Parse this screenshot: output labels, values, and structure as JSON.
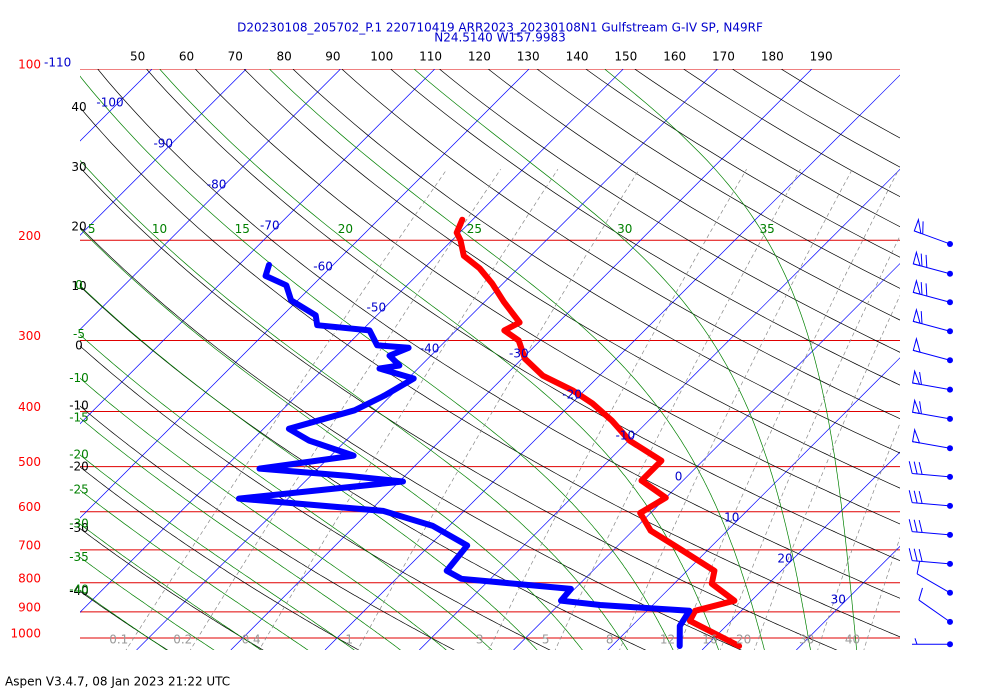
{
  "chart_data": {
    "type": "skewt",
    "title": "D20230108_205702_P.1 220710419 ARR2023_20230108N1 Gulfstream G-IV SP, N49RF",
    "subtitle": "N24.5140 W157.9983",
    "footer": "Aspen V3.4.7, 08 Jan 2023  21:22 UTC",
    "yscale": "log",
    "ylim": [
      1050,
      100
    ],
    "yticks": [
      100,
      200,
      300,
      400,
      500,
      600,
      700,
      800,
      900,
      1000
    ],
    "xlim": [
      -46,
      41
    ],
    "xticks": [
      -110,
      -100,
      -90,
      -80,
      -70,
      -60,
      -50,
      -40,
      -30,
      -20,
      -10,
      0,
      10,
      20,
      30
    ],
    "dry_adiabats_top": [
      50,
      60,
      70,
      80,
      90,
      100,
      110,
      120,
      130,
      140,
      150,
      160,
      170,
      180,
      190
    ],
    "dry_adiabats_left": [
      40,
      30,
      20,
      10,
      0,
      -10,
      -20,
      -30,
      -40
    ],
    "moist_adiabats_top": [
      5,
      10,
      15,
      20,
      25,
      30,
      35
    ],
    "moist_adiabats_left": [
      0,
      -5,
      -10,
      -15,
      -20,
      -25,
      -30,
      -35,
      -40
    ],
    "mixing_ratios": [
      0.1,
      0.2,
      0.4,
      1,
      3,
      5,
      8,
      12,
      16,
      20,
      30,
      40
    ],
    "series": [
      {
        "color": "#ff0000",
        "pressure": [
          184,
          194,
          200,
          213,
          224,
          238,
          257,
          279,
          288,
          300,
          323,
          346,
          367,
          387,
          415,
          450,
          488,
          529,
          567,
          603,
          648,
          697,
          762,
          803,
          860,
          896,
          933,
          1033
        ],
        "values": [
          -51.1,
          -50.3,
          -49.1,
          -47.1,
          -44.1,
          -41.2,
          -37.9,
          -34.1,
          -34.9,
          -32.3,
          -29.7,
          -26.0,
          -21.3,
          -17.8,
          -13.9,
          -9.9,
          -4.4,
          -4.4,
          0,
          -1.1,
          1.9,
          6.9,
          12.9,
          14.0,
          18.2,
          15.1,
          15.6,
          23.5
        ]
      },
      {
        "color": "#0000ff",
        "pressure": [
          221,
          231,
          240,
          255,
          271,
          282,
          288,
          306,
          309,
          319,
          332,
          336,
          350,
          375,
          398,
          429,
          450,
          478,
          504,
          519,
          531,
          569,
          598,
          635,
          688,
          762,
          787,
          820,
          860,
          875,
          896,
          953,
          1033
        ],
        "values": [
          -66.8,
          -66.0,
          -62.8,
          -60.7,
          -56.5,
          -55.3,
          -49.2,
          -46.8,
          -43.2,
          -44.4,
          -42.3,
          -44.1,
          -39.4,
          -40.7,
          -42.3,
          -47.3,
          -43.9,
          -37.6,
          -46.2,
          -36.0,
          -29.6,
          -45.2,
          -28.6,
          -21.8,
          -16.0,
          -15.5,
          -13.1,
          -0.4,
          -0.2,
          4.4,
          14.5,
          15.1,
          17.2
        ]
      }
    ],
    "wind": {
      "color": "#0000ff",
      "pressure": [
        203,
        229,
        257,
        289,
        325,
        366,
        412,
        464,
        521,
        586,
        659,
        741,
        833,
        937,
        1026
      ],
      "speed": [
        60,
        70,
        70,
        60,
        50,
        60,
        60,
        50,
        30,
        30,
        30,
        30,
        10,
        10,
        5
      ],
      "direction": [
        290,
        285,
        285,
        285,
        285,
        280,
        280,
        280,
        275,
        275,
        275,
        275,
        300,
        305,
        270
      ]
    }
  }
}
